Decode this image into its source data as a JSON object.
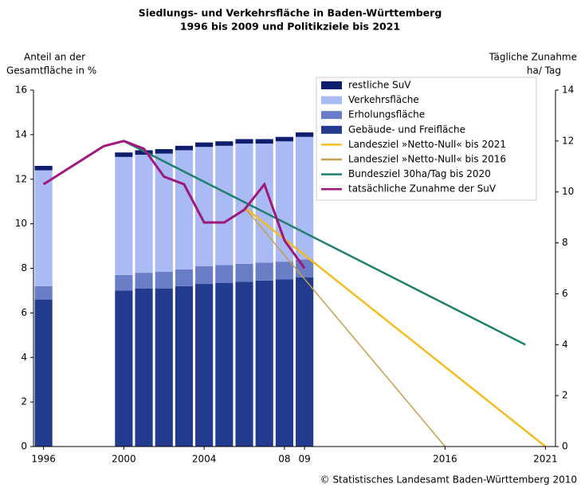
{
  "chart_data": {
    "type": "bar_line",
    "title": [
      "Siedlungs- und Verkehrsfläche in Baden-Württemberg",
      "1996 bis 2009 und Politikziele bis 2021"
    ],
    "ylabel": [
      "Anteil an der",
      "Gesamtfläche in %"
    ],
    "y2label": [
      "Tägliche Zunahme",
      "ha/ Tag"
    ],
    "source": "© Statistisches Landesamt Baden-Württemberg 2010",
    "xlim": [
      1995.5,
      2021.5
    ],
    "xticks": [
      1996,
      2000,
      2004,
      {
        "value": 2008,
        "label": "08"
      },
      {
        "value": 2009,
        "label": "09"
      },
      2016,
      2021
    ],
    "ylim": [
      0,
      16
    ],
    "yticks": [
      0,
      2,
      4,
      6,
      8,
      10,
      12,
      14,
      16
    ],
    "y2lim": [
      0,
      14
    ],
    "y2ticks": [
      0,
      2,
      4,
      6,
      8,
      10,
      12,
      14
    ],
    "bar_x": [
      1996,
      2000,
      2001,
      2002,
      2003,
      2004,
      2005,
      2006,
      2007,
      2008,
      2009
    ],
    "bar_series": [
      {
        "name": "Gebäude- und Freifläche",
        "color": "#223b8f",
        "values": [
          6.6,
          7.0,
          7.1,
          7.1,
          7.2,
          7.3,
          7.35,
          7.4,
          7.45,
          7.5,
          7.6
        ]
      },
      {
        "name": "Erholungsfläche",
        "color": "#6a7ec8",
        "values": [
          0.6,
          0.7,
          0.7,
          0.75,
          0.75,
          0.8,
          0.8,
          0.8,
          0.8,
          0.8,
          0.8
        ]
      },
      {
        "name": "Verkehrsfläche",
        "color": "#a9baf4",
        "values": [
          5.2,
          5.3,
          5.3,
          5.3,
          5.35,
          5.35,
          5.35,
          5.4,
          5.35,
          5.4,
          5.5
        ]
      },
      {
        "name": "restliche SuV",
        "color": "#0f1d6e",
        "values": [
          0.2,
          0.2,
          0.2,
          0.2,
          0.2,
          0.2,
          0.2,
          0.2,
          0.2,
          0.2,
          0.2
        ]
      }
    ],
    "line_series": [
      {
        "name": "Landesziel »Netto-Null« bis 2021",
        "color": "#f5bd1f",
        "axis": "y2",
        "x": [
          2006,
          2021
        ],
        "values": [
          9.4,
          0
        ]
      },
      {
        "name": "Landesziel »Netto-Null« bis 2016",
        "color": "#c4a050",
        "axis": "y2",
        "x": [
          2006,
          2016
        ],
        "values": [
          9.4,
          0
        ]
      },
      {
        "name": "Bundesziel 30ha/Tag bis 2020",
        "color": "#1f7f6f",
        "axis": "y2",
        "x": [
          2000,
          2020
        ],
        "values": [
          12,
          4
        ]
      },
      {
        "name": "tatsächliche Zunahme der SuV",
        "color": "#a0187b",
        "axis": "y2",
        "x": [
          1996,
          1999,
          2000,
          2001,
          2002,
          2003,
          2004,
          2005,
          2006,
          2007,
          2008,
          2009
        ],
        "values": [
          10.3,
          11.8,
          12.0,
          11.7,
          10.6,
          10.3,
          8.8,
          8.8,
          9.3,
          10.3,
          8.1,
          7.0
        ]
      }
    ]
  }
}
